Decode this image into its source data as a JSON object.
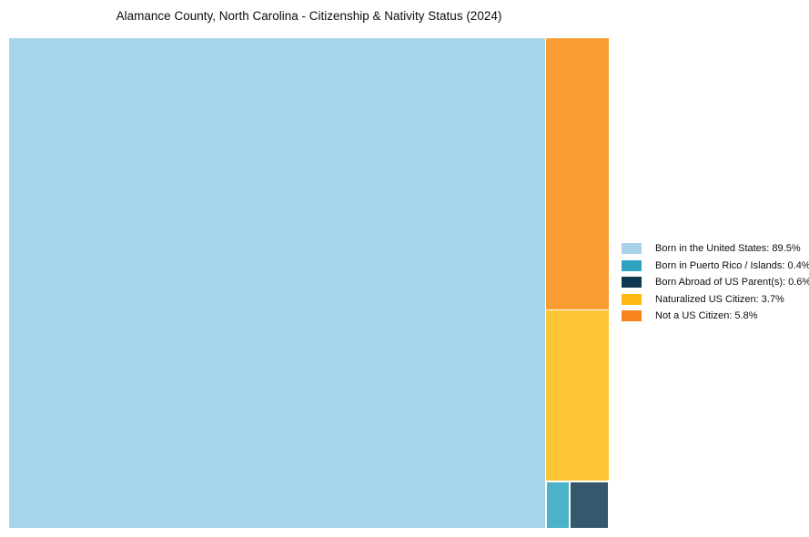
{
  "header": {
    "title": "Alamance County, North Carolina - Citizenship & Nativity Status (2024)"
  },
  "chart_data": {
    "type": "treemap",
    "title": "Alamance County, North Carolina - Citizenship & Nativity Status (2024)",
    "unit": "%",
    "legend_position": "right-middle",
    "background_color": "#ffffff",
    "categories": [
      {
        "name": "Born in the United States",
        "value": 89.5,
        "legend_label": "Born in the United States: 89.5%",
        "swatch_color": "#A8D2E8",
        "fill_color": "#A5D4EB"
      },
      {
        "name": "Born in Puerto Rico / Islands",
        "value": 0.4,
        "legend_label": "Born in Puerto Rico / Islands: 0.4%",
        "swatch_color": "#2EA3BF",
        "fill_color": "#4BB2C9"
      },
      {
        "name": "Born Abroad of US Parent(s)",
        "value": 0.6,
        "legend_label": "Born Abroad of US Parent(s): 0.6%",
        "swatch_color": "#0F3952",
        "fill_color": "#36576C"
      },
      {
        "name": "Naturalized US Citizen",
        "value": 3.7,
        "legend_label": "Naturalized US Citizen: 3.7%",
        "swatch_color": "#FFB711",
        "fill_color": "#FEC636"
      },
      {
        "name": "Not a US Citizen",
        "value": 5.8,
        "legend_label": "Not a US Citizen: 5.8%",
        "swatch_color": "#F8821C",
        "fill_color": "#FA9D33"
      }
    ]
  }
}
